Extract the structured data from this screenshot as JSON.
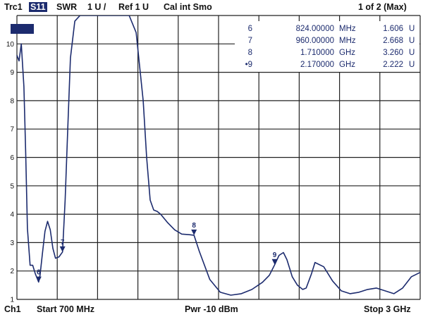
{
  "header": {
    "trace": "Trc1",
    "param": "S11",
    "format": "SWR",
    "scale": "1 U /",
    "ref": "Ref 1 U",
    "cal": "Cal int Smo",
    "page": "1 of 2 (Max)"
  },
  "footer": {
    "channel": "Ch1",
    "start": "Start  700 MHz",
    "power": "Pwr  -10 dBm",
    "stop": "Stop  3 GHz"
  },
  "colors": {
    "trace": "#1c2b6e",
    "grid": "#222222",
    "badge": "#1c2b6e"
  },
  "chart_data": {
    "type": "line",
    "x_unit": "MHz",
    "xlim": [
      700,
      3000
    ],
    "ylim": [
      1,
      11
    ],
    "y_ticks": [
      "10",
      "9",
      "8",
      "7",
      "6",
      "5",
      "4",
      "3",
      "2",
      "1"
    ],
    "series": [
      {
        "x": [
          700,
          712,
          725,
          740,
          750,
          760,
          775,
          790,
          805,
          815,
          824,
          832,
          845,
          860,
          875,
          890,
          905,
          920,
          940,
          960,
          975,
          990,
          1005,
          1030,
          1060,
          1090,
          1110,
          1150,
          1200,
          1250,
          1300,
          1340,
          1380,
          1420,
          1440,
          1460,
          1480,
          1500,
          1520,
          1560,
          1600,
          1640,
          1680,
          1710,
          1740,
          1800,
          1860,
          1920,
          1980,
          2040,
          2100,
          2140,
          2170,
          2195,
          2220,
          2240,
          2270,
          2300,
          2330,
          2350,
          2380,
          2400,
          2450,
          2500,
          2550,
          2600,
          2650,
          2700,
          2750,
          2800,
          2850,
          2900,
          2950,
          3000
        ],
        "y": [
          9.6,
          9.4,
          10.0,
          8.5,
          6.2,
          3.5,
          2.2,
          2.2,
          1.9,
          1.75,
          1.61,
          1.85,
          2.6,
          3.4,
          3.75,
          3.45,
          2.8,
          2.45,
          2.5,
          2.67,
          4.5,
          7.0,
          9.5,
          10.8,
          11.0,
          11.0,
          11.0,
          11.0,
          11.0,
          11.0,
          11.0,
          11.0,
          10.4,
          8.0,
          6.0,
          4.5,
          4.15,
          4.1,
          4.0,
          3.7,
          3.45,
          3.3,
          3.28,
          3.26,
          2.7,
          1.7,
          1.25,
          1.15,
          1.2,
          1.35,
          1.6,
          1.85,
          2.22,
          2.55,
          2.65,
          2.4,
          1.8,
          1.5,
          1.35,
          1.4,
          1.9,
          2.3,
          2.15,
          1.65,
          1.3,
          1.2,
          1.25,
          1.35,
          1.4,
          1.3,
          1.2,
          1.4,
          1.8,
          1.95
        ]
      }
    ],
    "markers": [
      {
        "id": "6",
        "x": 824,
        "y": 1.606,
        "freq": "824.00000",
        "freq_unit": "MHz",
        "value": "1.606",
        "value_unit": "U",
        "active": false
      },
      {
        "id": "7",
        "x": 960,
        "y": 2.668,
        "freq": "960.00000",
        "freq_unit": "MHz",
        "value": "2.668",
        "value_unit": "U",
        "active": false
      },
      {
        "id": "8",
        "x": 1710,
        "y": 3.26,
        "freq": "1.710000",
        "freq_unit": "GHz",
        "value": "3.260",
        "value_unit": "U",
        "active": false
      },
      {
        "id": "9",
        "x": 2170,
        "y": 2.222,
        "freq": "2.170000",
        "freq_unit": "GHz",
        "value": "2.222",
        "value_unit": "U",
        "active": true
      }
    ]
  }
}
